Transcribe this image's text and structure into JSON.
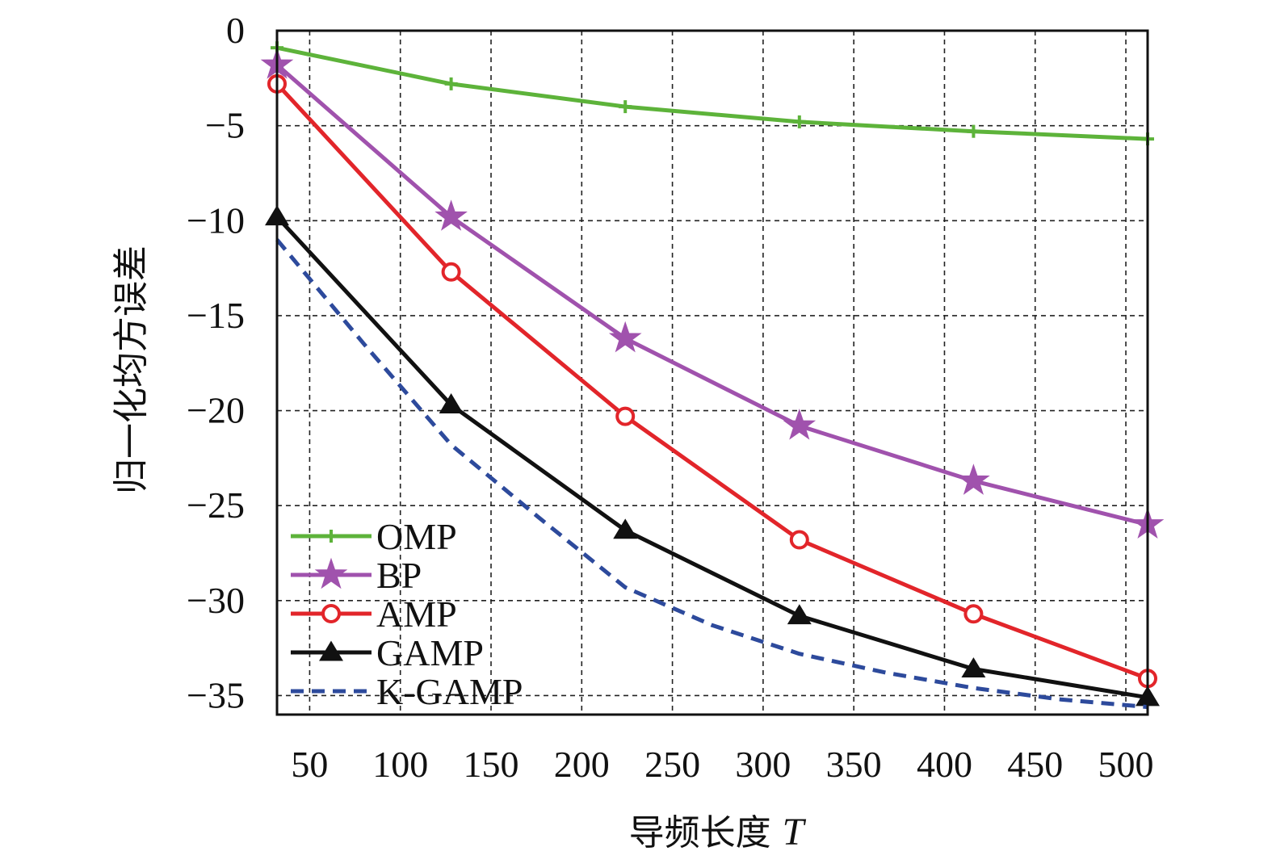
{
  "chart_data": {
    "type": "line",
    "xlabel_prefix": "导频长度",
    "xlabel_var": "T",
    "ylabel": "归一化均方误差",
    "xlim": [
      32,
      512
    ],
    "ylim": [
      -36,
      0
    ],
    "xticks": [
      50,
      100,
      150,
      200,
      250,
      300,
      350,
      400,
      450,
      500
    ],
    "yticks": [
      0,
      -5,
      -10,
      -15,
      -20,
      -25,
      -30,
      -35
    ],
    "ytick_labels": [
      "0",
      "−5",
      "−10",
      "−15",
      "−20",
      "−25",
      "−30",
      "−35"
    ],
    "grid": true,
    "legend_position": "bottom-left",
    "series": [
      {
        "name": "OMP",
        "color": "#5db33a",
        "marker": "plus",
        "dashed": false,
        "x": [
          32,
          128,
          224,
          320,
          416,
          512
        ],
        "y": [
          -0.9,
          -2.8,
          -4.0,
          -4.8,
          -5.3,
          -5.7
        ]
      },
      {
        "name": "BP",
        "color": "#a052ad",
        "marker": "star",
        "dashed": false,
        "x": [
          32,
          128,
          224,
          320,
          416,
          512
        ],
        "y": [
          -1.8,
          -9.8,
          -16.2,
          -20.8,
          -23.7,
          -26.0
        ]
      },
      {
        "name": "AMP",
        "color": "#e2252a",
        "marker": "circle",
        "dashed": false,
        "x": [
          32,
          128,
          224,
          320,
          416,
          512
        ],
        "y": [
          -2.8,
          -12.7,
          -20.3,
          -26.8,
          -30.7,
          -34.1
        ]
      },
      {
        "name": "GAMP",
        "color": "#111111",
        "marker": "triangle",
        "dashed": false,
        "x": [
          32,
          128,
          224,
          320,
          416,
          512
        ],
        "y": [
          -9.8,
          -19.7,
          -26.3,
          -30.8,
          -33.6,
          -35.1
        ]
      },
      {
        "name": "K-GAMP",
        "color": "#2d4a9c",
        "marker": "none",
        "dashed": true,
        "x": [
          32,
          80,
          128,
          176,
          224,
          272,
          320,
          368,
          416,
          464,
          512
        ],
        "y": [
          -11.0,
          -16.5,
          -21.8,
          -25.6,
          -29.3,
          -31.3,
          -32.8,
          -33.8,
          -34.6,
          -35.2,
          -35.6
        ]
      }
    ]
  }
}
